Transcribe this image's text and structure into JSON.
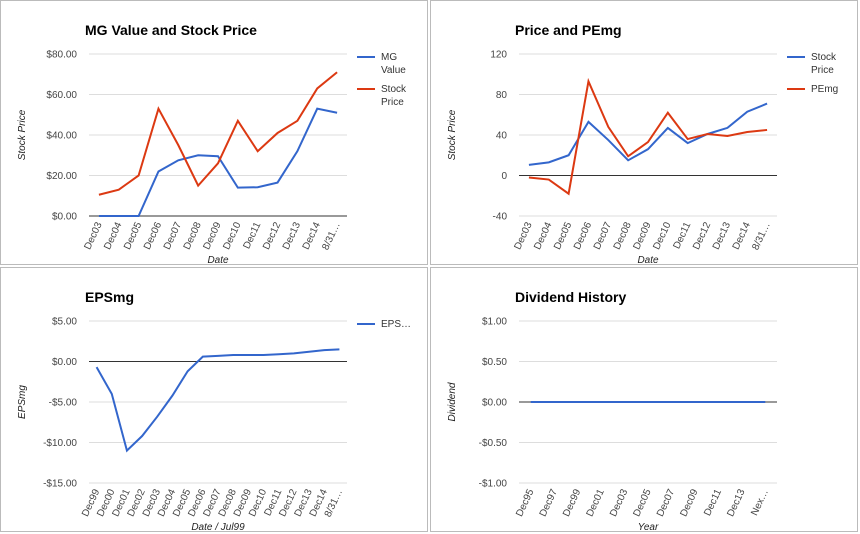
{
  "chart_data": [
    {
      "type": "line",
      "title": "MG Value and Stock Price",
      "x_label": "Date",
      "y_label": "Stock Price",
      "categories": [
        "Dec03",
        "Dec04",
        "Dec05",
        "Dec06",
        "Dec07",
        "Dec08",
        "Dec09",
        "Dec10",
        "Dec11",
        "Dec12",
        "Dec13",
        "Dec14",
        "8/31…"
      ],
      "series": [
        {
          "name": "MG Value",
          "color": "#3366cc",
          "values": [
            0,
            0,
            0,
            22,
            27.5,
            30,
            29.5,
            14,
            14.2,
            16.5,
            32,
            53,
            51
          ]
        },
        {
          "name": "Stock Price",
          "color": "#dc3912",
          "values": [
            10.5,
            13,
            20,
            53,
            35,
            15,
            26,
            47,
            32,
            41,
            47,
            63,
            71
          ]
        }
      ],
      "ylim": [
        0,
        80
      ],
      "yticks": [
        {
          "value": 0,
          "label": "$0.00"
        },
        {
          "value": 20,
          "label": "$20.00"
        },
        {
          "value": 40,
          "label": "$40.00"
        },
        {
          "value": 60,
          "label": "$60.00"
        },
        {
          "value": 80,
          "label": "$80.00"
        }
      ],
      "grid": true
    },
    {
      "type": "line",
      "title": "Price and PEmg",
      "x_label": "Date",
      "y_label": "Stock Price",
      "categories": [
        "Dec03",
        "Dec04",
        "Dec05",
        "Dec06",
        "Dec07",
        "Dec08",
        "Dec09",
        "Dec10",
        "Dec11",
        "Dec12",
        "Dec13",
        "Dec14",
        "8/31…"
      ],
      "series": [
        {
          "name": "Stock Price",
          "color": "#3366cc",
          "values": [
            10.5,
            13,
            20,
            53,
            35,
            15,
            26,
            47,
            32,
            41,
            47,
            63,
            71
          ]
        },
        {
          "name": "PEmg",
          "color": "#dc3912",
          "values": [
            -2,
            -4,
            -18,
            93,
            48,
            19,
            33,
            62,
            36,
            41,
            39,
            43,
            45
          ]
        }
      ],
      "ylim": [
        -40,
        120
      ],
      "yticks": [
        -40,
        0,
        40,
        80,
        120
      ],
      "grid": true
    },
    {
      "type": "line",
      "title": "EPSmg",
      "x_label": "Date / Jul99",
      "y_label": "EPSmg",
      "categories": [
        "Dec99",
        "Dec00",
        "Dec01",
        "Dec02",
        "Dec03",
        "Dec04",
        "Dec05",
        "Dec06",
        "Dec07",
        "Dec08",
        "Dec09",
        "Dec10",
        "Dec11",
        "Dec12",
        "Dec13",
        "Dec14",
        "8/31…"
      ],
      "series": [
        {
          "name": "EPS…",
          "color": "#3366cc",
          "values": [
            -0.7,
            -4,
            -11,
            -9.2,
            -6.8,
            -4.2,
            -1.2,
            0.6,
            0.7,
            0.8,
            0.8,
            0.8,
            0.9,
            1.0,
            1.2,
            1.4,
            1.5
          ]
        }
      ],
      "ylim": [
        -15,
        5
      ],
      "yticks": [
        {
          "value": -15,
          "label": "-$15.00"
        },
        {
          "value": -10,
          "label": "-$10.00"
        },
        {
          "value": -5,
          "label": "-$5.00"
        },
        {
          "value": 0,
          "label": "$0.00"
        },
        {
          "value": 5,
          "label": "$5.00"
        }
      ],
      "grid": true
    },
    {
      "type": "line",
      "title": "Dividend History",
      "x_label": "Year",
      "y_label": "Dividend",
      "categories": [
        "Dec95",
        "Dec97",
        "Dec99",
        "Dec01",
        "Dec03",
        "Dec05",
        "Dec07",
        "Dec09",
        "Dec11",
        "Dec13",
        "Nex…"
      ],
      "series": [
        {
          "color": "#3366cc",
          "values": [
            0,
            0,
            0,
            0,
            0,
            0,
            0,
            0,
            0,
            0,
            0
          ]
        }
      ],
      "ylim": [
        -1,
        1
      ],
      "yticks": [
        {
          "value": -1,
          "label": "-$1.00"
        },
        {
          "value": -0.5,
          "label": "-$0.50"
        },
        {
          "value": 0,
          "label": "$0.00"
        },
        {
          "value": 0.5,
          "label": "$0.50"
        },
        {
          "value": 1,
          "label": "$1.00"
        }
      ],
      "grid": true
    }
  ]
}
